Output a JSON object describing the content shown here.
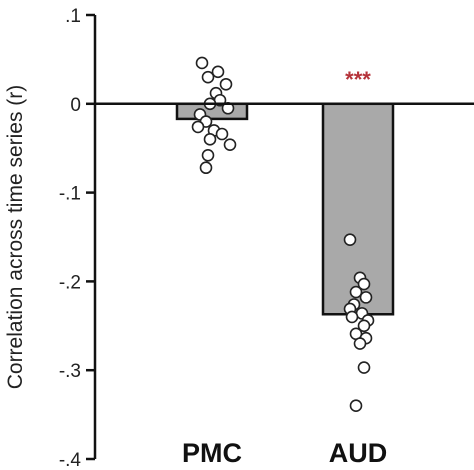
{
  "chart_data": {
    "type": "bar",
    "ylabel": "Correlation across time series (r)",
    "ylim": [
      -0.4,
      0.1
    ],
    "yticks": [
      0.1,
      0,
      -0.1,
      -0.2,
      -0.3,
      -0.4
    ],
    "ytick_labels": [
      ".1",
      "0",
      "-.1",
      "-.2",
      "-.3",
      "-.4"
    ],
    "categories": [
      "PMC",
      "AUD"
    ],
    "values": [
      -0.017,
      -0.237
    ],
    "significance": [
      "",
      "***"
    ],
    "points": [
      [
        0.046,
        0.036,
        0.03,
        0.022,
        0.012,
        0.004,
        0.0,
        -0.005,
        -0.012,
        -0.02,
        -0.026,
        -0.03,
        -0.034,
        -0.04,
        -0.046,
        -0.058,
        -0.072
      ],
      [
        -0.153,
        -0.196,
        -0.203,
        -0.212,
        -0.218,
        -0.226,
        -0.231,
        -0.236,
        -0.24,
        -0.244,
        -0.25,
        -0.259,
        -0.264,
        -0.27,
        -0.297,
        -0.34
      ]
    ],
    "colors": {
      "bar": "#a9a9a9",
      "significance": "#b5333a",
      "point_fill": "#ffffff",
      "axis": "#111111"
    }
  }
}
